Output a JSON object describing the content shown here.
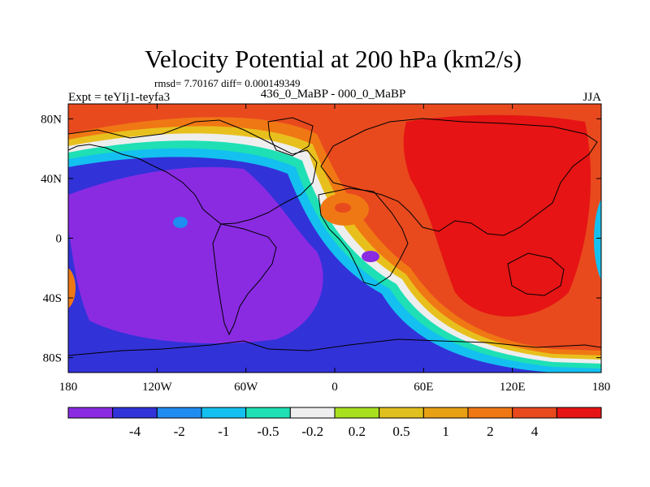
{
  "chart_data": {
    "type": "heatmap",
    "title": "Velocity Potential at 200 hPa (km2/s)",
    "stats": "rmsd= 7.70167 diff= 0.000149349",
    "left_label": "Expt = teYIj1-teyfa3",
    "center_label": "436_0_MaBP - 000_0_MaBP",
    "right_label": "JJA",
    "x_ticks": [
      {
        "lon": -180,
        "label": "180"
      },
      {
        "lon": -120,
        "label": "120W"
      },
      {
        "lon": -60,
        "label": "60W"
      },
      {
        "lon": 0,
        "label": "0"
      },
      {
        "lon": 60,
        "label": "60E"
      },
      {
        "lon": 120,
        "label": "120E"
      },
      {
        "lon": 180,
        "label": "180"
      }
    ],
    "y_ticks": [
      {
        "lat": 80,
        "label": "80N"
      },
      {
        "lat": 40,
        "label": "40N"
      },
      {
        "lat": 0,
        "label": "0"
      },
      {
        "lat": -40,
        "label": "40S"
      },
      {
        "lat": -80,
        "label": "80S"
      }
    ],
    "xlim": [
      -180,
      180
    ],
    "ylim": [
      -90,
      90
    ],
    "colorbar": {
      "colors": [
        "#8a2be2",
        "#3232d9",
        "#1e8cf0",
        "#14c0f0",
        "#1ee0b4",
        "#eeeeee",
        "#a8e01e",
        "#e0c01e",
        "#e8a014",
        "#f07814",
        "#e84a1e",
        "#e61414"
      ],
      "labels": [
        "-4",
        "-2",
        "-1",
        "-0.5",
        "-0.2",
        "0.2",
        "0.5",
        "1",
        "2",
        "4"
      ]
    }
  }
}
